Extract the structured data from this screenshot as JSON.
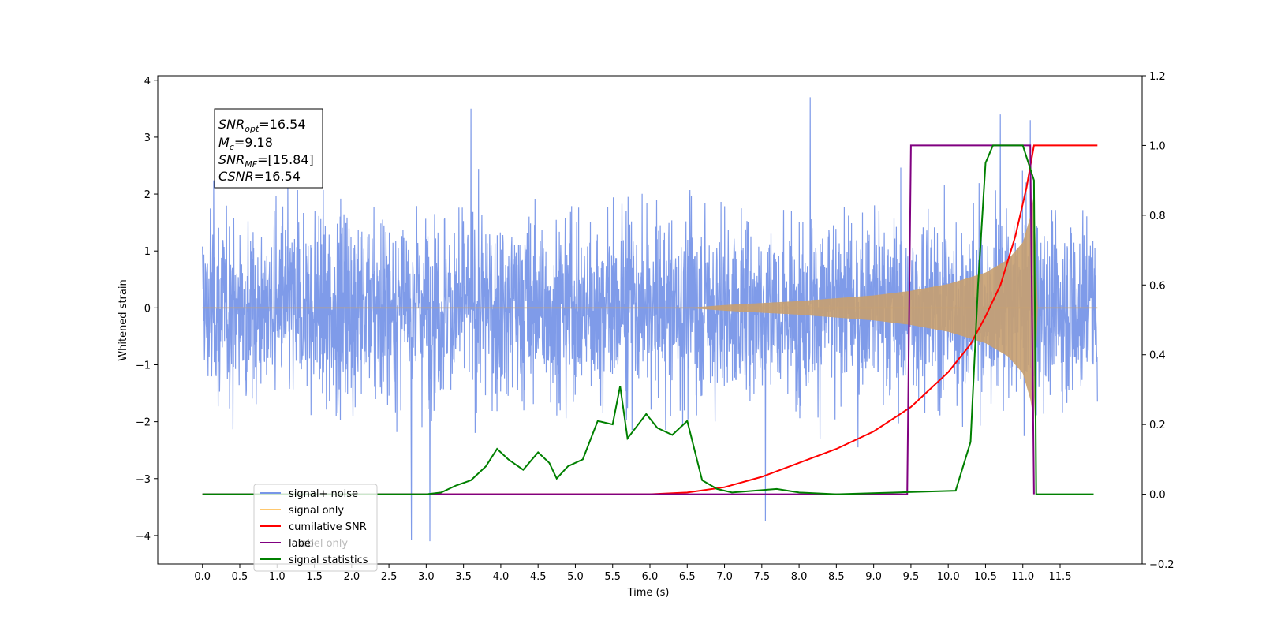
{
  "chart_data": {
    "type": "line",
    "xlabel": "Time (s)",
    "ylabel": "Whitened strain",
    "y2label": "",
    "xlim": [
      -0.6,
      12.6
    ],
    "ylim": [
      -4.5,
      4.08
    ],
    "y2lim": [
      -0.2,
      1.2
    ],
    "xticks": [
      "0.0",
      "0.5",
      "1.0",
      "1.5",
      "2.0",
      "2.5",
      "3.0",
      "3.5",
      "4.0",
      "4.5",
      "5.0",
      "5.5",
      "6.0",
      "6.5",
      "7.0",
      "7.5",
      "8.0",
      "8.5",
      "9.0",
      "9.5",
      "10.0",
      "10.5",
      "11.0",
      "11.5"
    ],
    "yticks": [
      "4",
      "3",
      "2",
      "1",
      "0",
      "−1",
      "−2",
      "−3",
      "−4"
    ],
    "y2ticks": [
      "1.2",
      "1.0",
      "0.8",
      "0.6",
      "0.4",
      "0.2",
      "0.0",
      "−0.2"
    ],
    "info_box": {
      "snr_opt": {
        "base": "SNR",
        "sub": "opt",
        "value": "=16.54"
      },
      "mc": {
        "base": "M",
        "sub": "c",
        "value": "=9.18"
      },
      "snr_mf": {
        "base": "SNR",
        "sub": "MF",
        "value": "=[15.84]"
      },
      "csnr": {
        "base": "CSNR",
        "sub": "",
        "value": "=16.54"
      }
    },
    "legend": {
      "position": "lower-left",
      "entries": [
        {
          "label": "signal+ noise",
          "color": "#7896e8"
        },
        {
          "label": "signal only",
          "color": "#ffc86e"
        },
        {
          "label": "cumilative SNR",
          "color": "#ff0000"
        },
        {
          "label": "label",
          "color": "#800080"
        },
        {
          "label": "signal statistics",
          "color": "#008000"
        }
      ],
      "occluded_text": [
        "label only"
      ]
    },
    "series": [
      {
        "name": "signal+ noise",
        "axis": "left",
        "color": "#7896e8",
        "description": "white-noise-like whitened strain with injected chirp",
        "x_range": [
          0.0,
          12.0
        ],
        "typical_envelope": [
          -2.0,
          2.4
        ],
        "extreme_peaks": [
          {
            "x": 2.8,
            "y": -4.08
          },
          {
            "x": 3.05,
            "y": -4.1
          },
          {
            "x": 3.6,
            "y": 3.5
          },
          {
            "x": 8.15,
            "y": 3.7
          },
          {
            "x": 7.55,
            "y": -3.75
          },
          {
            "x": 10.7,
            "y": 3.4
          },
          {
            "x": 11.1,
            "y": 3.3
          }
        ]
      },
      {
        "name": "signal only",
        "axis": "left",
        "color": "#ffc86e",
        "description": "chirp signal, amplitude grows until merger",
        "x": [
          0,
          6.5,
          7.0,
          8.0,
          9.0,
          9.5,
          10.0,
          10.5,
          10.8,
          11.0,
          11.1,
          11.15,
          11.2,
          12.0
        ],
        "amplitude": [
          0,
          0.0,
          0.05,
          0.12,
          0.22,
          0.3,
          0.42,
          0.62,
          0.85,
          1.15,
          1.6,
          2.0,
          0,
          0
        ]
      },
      {
        "name": "cumilative SNR",
        "axis": "right",
        "color": "#ff0000",
        "x": [
          6.0,
          6.5,
          7.0,
          7.5,
          8.0,
          8.5,
          9.0,
          9.5,
          10.0,
          10.3,
          10.5,
          10.7,
          10.9,
          11.05,
          11.15,
          12.0
        ],
        "y": [
          0.0,
          0.005,
          0.02,
          0.05,
          0.09,
          0.13,
          0.18,
          0.25,
          0.35,
          0.43,
          0.51,
          0.6,
          0.74,
          0.88,
          1.0,
          1.0
        ]
      },
      {
        "name": "label",
        "axis": "right",
        "color": "#800080",
        "x": [
          0.0,
          9.45,
          9.5,
          11.1,
          11.15
        ],
        "y": [
          0.0,
          0.0,
          1.0,
          1.0,
          0.0
        ]
      },
      {
        "name": "signal statistics",
        "axis": "right",
        "color": "#008000",
        "x": [
          0.0,
          3.0,
          3.2,
          3.4,
          3.6,
          3.8,
          3.95,
          4.1,
          4.3,
          4.5,
          4.65,
          4.75,
          4.9,
          5.1,
          5.3,
          5.5,
          5.6,
          5.7,
          5.95,
          6.1,
          6.3,
          6.5,
          6.7,
          6.9,
          7.1,
          7.4,
          7.7,
          8.0,
          8.5,
          10.1,
          10.3,
          10.4,
          10.5,
          10.6,
          11.0,
          11.15,
          11.18,
          11.95
        ],
        "y": [
          0.0,
          0.0,
          0.005,
          0.025,
          0.04,
          0.08,
          0.13,
          0.1,
          0.07,
          0.12,
          0.09,
          0.045,
          0.08,
          0.1,
          0.21,
          0.2,
          0.31,
          0.16,
          0.23,
          0.19,
          0.17,
          0.21,
          0.04,
          0.015,
          0.005,
          0.01,
          0.015,
          0.005,
          0.0,
          0.01,
          0.15,
          0.6,
          0.95,
          1.0,
          1.0,
          0.9,
          0.0,
          0.0
        ]
      }
    ]
  }
}
